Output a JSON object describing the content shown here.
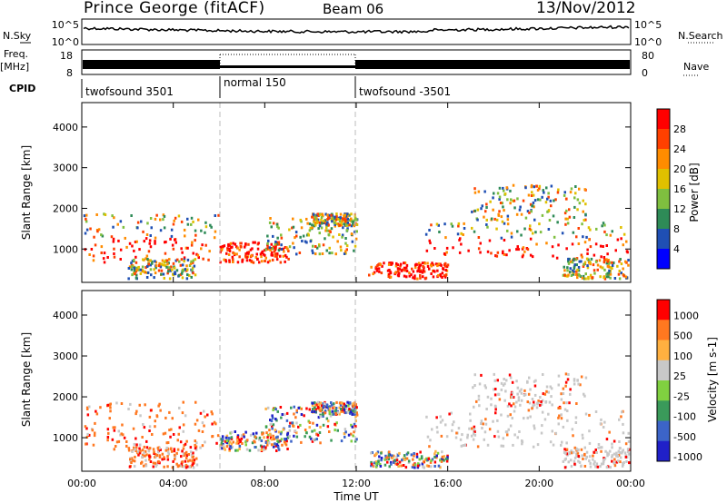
{
  "header": {
    "station": "Prince George (fitACF)",
    "beam": "Beam 06",
    "date": "13/Nov/2012"
  },
  "top_panels": {
    "nsky_label": "N.Sky",
    "nsky_ticks": [
      "10^5",
      "10^0"
    ],
    "nsearch_label": "N.Search",
    "nsearch_ticks": [
      "10^5",
      "10^0"
    ],
    "freq_label": "Freq.",
    "freq_unit": "[MHz]",
    "freq_ticks": [
      "18",
      "8"
    ],
    "nave_label": "Nave",
    "nave_ticks": [
      "80",
      "0"
    ],
    "cpid_label": "CPID",
    "cpid_segments": [
      {
        "start": 0,
        "end": 6,
        "label": "twofsound 3501"
      },
      {
        "start": 6,
        "end": 12,
        "label": "normal 150"
      },
      {
        "start": 12,
        "end": 24,
        "label": "twofsound -3501"
      }
    ]
  },
  "chart_data": [
    {
      "type": "heatmap",
      "name": "power-panel",
      "ylabel": "Slant Range [km]",
      "ylim": [
        180,
        4600
      ],
      "yticks": [
        1000,
        2000,
        3000,
        4000
      ],
      "xlim": [
        0,
        24
      ],
      "colorbar_label": "Power [dB]",
      "colorbar_ticks": [
        "4",
        "8",
        "12",
        "16",
        "20",
        "24",
        "28"
      ],
      "colors": [
        "#0000ff",
        "#1f4fb4",
        "#2e8b57",
        "#7fbf3f",
        "#e0c000",
        "#ff8c00",
        "#ff4000",
        "#ff0000"
      ]
    },
    {
      "type": "heatmap",
      "name": "velocity-panel",
      "ylabel": "Slant Range [km]",
      "ylim": [
        180,
        4600
      ],
      "yticks": [
        1000,
        2000,
        3000,
        4000
      ],
      "xlim": [
        0,
        24
      ],
      "xticks": [
        "00:00",
        "04:00",
        "08:00",
        "12:00",
        "16:00",
        "20:00",
        "00:00"
      ],
      "xlabel": "Time UT",
      "colorbar_label": "Velocity [m s-1]",
      "colorbar_ticks": [
        "1000",
        "500",
        "100",
        "25",
        "-25",
        "-100",
        "-500",
        "-1000"
      ],
      "colors": [
        "#2020c8",
        "#3c64c8",
        "#3a9a5a",
        "#80d040",
        "#c8c8c8",
        "#ffb040",
        "#ff7820",
        "#ff0000"
      ]
    }
  ]
}
